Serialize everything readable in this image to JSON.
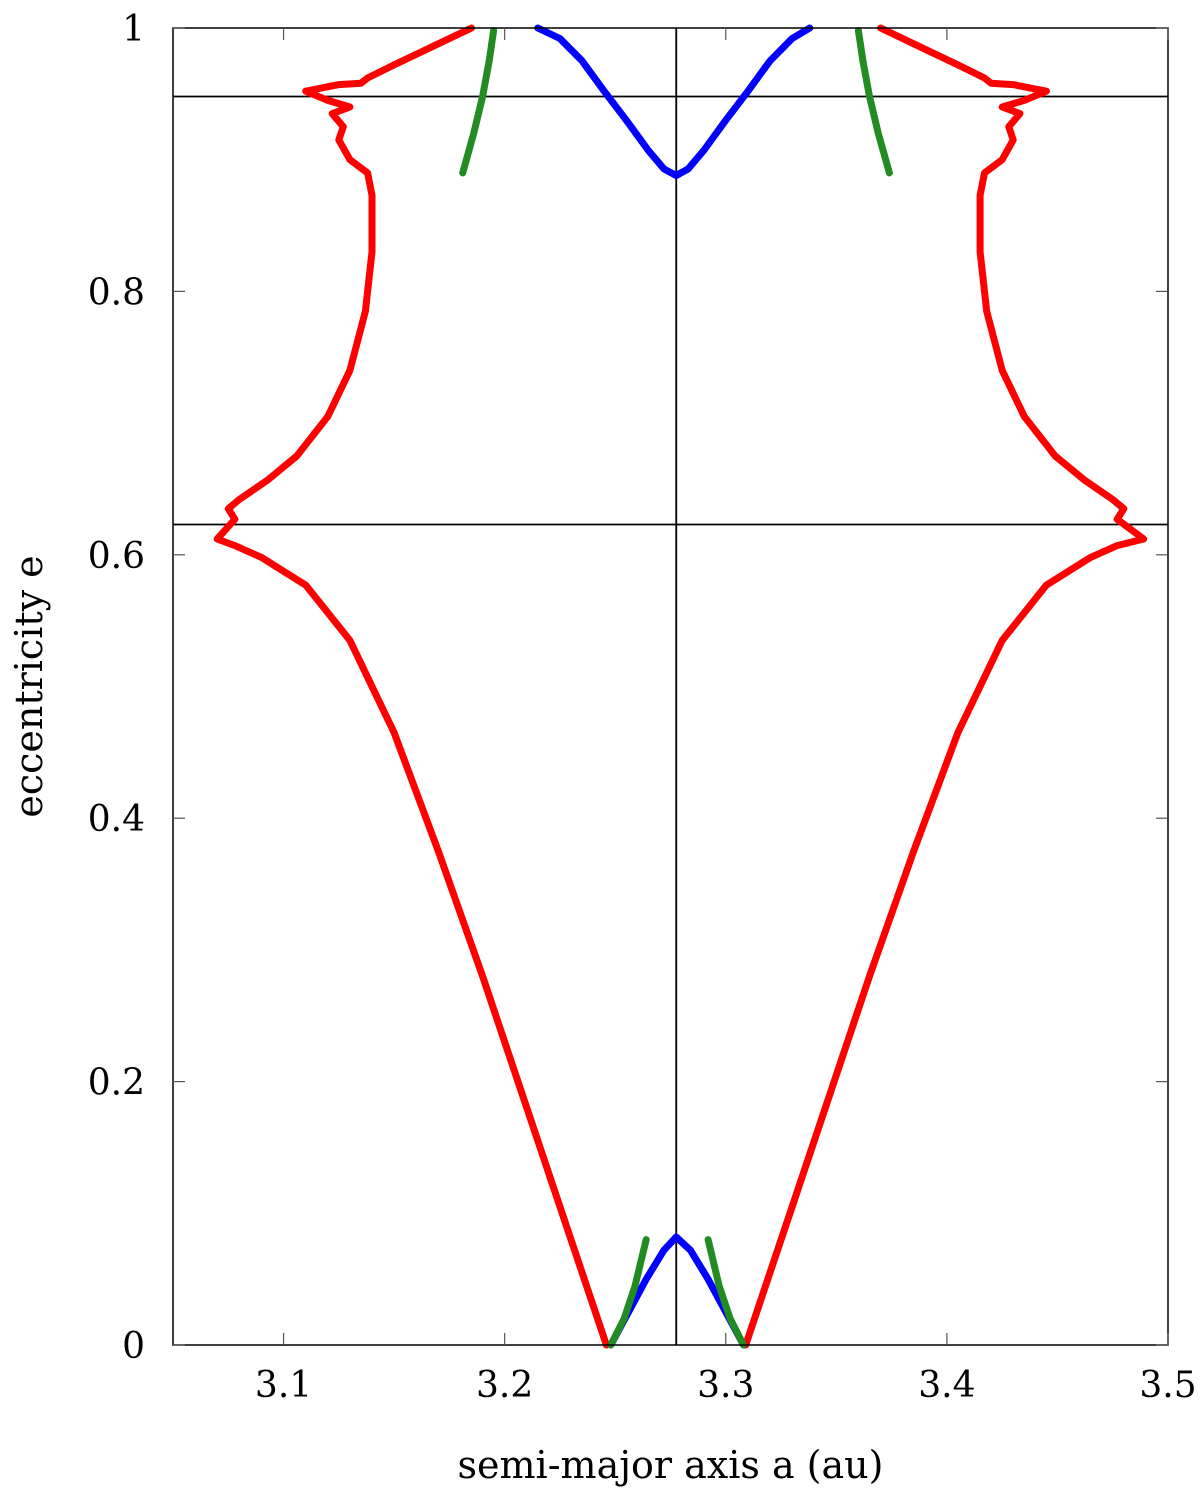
{
  "chart_data": {
    "type": "line",
    "xlabel": "semi-major axis a (au)",
    "ylabel": "eccentricity e",
    "xlim": [
      3.05,
      3.5
    ],
    "ylim": [
      0,
      1
    ],
    "xticks": [
      "3.1",
      "3.2",
      "3.3",
      "3.4",
      "3.5"
    ],
    "xtick_values": [
      3.1,
      3.2,
      3.3,
      3.4,
      3.5
    ],
    "yticks": [
      "0",
      "0.2",
      "0.4",
      "0.6",
      "0.8",
      "1"
    ],
    "ytick_values": [
      0,
      0.2,
      0.4,
      0.6,
      0.8,
      1
    ],
    "grid": false,
    "reference_lines": {
      "x": [
        3.2776
      ],
      "y": [
        0.948,
        0.623
      ]
    },
    "colors": {
      "red": "#ff0000",
      "blue": "#0000ff",
      "green": "#228b22",
      "axes": "#000000"
    },
    "series": [
      {
        "color": "#ff0000",
        "points": [
          [
            3.246,
            0.0
          ],
          [
            3.23,
            0.08
          ],
          [
            3.21,
            0.18
          ],
          [
            3.19,
            0.28
          ],
          [
            3.17,
            0.375
          ],
          [
            3.15,
            0.465
          ],
          [
            3.13,
            0.535
          ],
          [
            3.11,
            0.577
          ],
          [
            3.09,
            0.598
          ],
          [
            3.078,
            0.607
          ],
          [
            3.07,
            0.612
          ],
          [
            3.078,
            0.627
          ],
          [
            3.075,
            0.635
          ],
          [
            3.08,
            0.642
          ],
          [
            3.093,
            0.657
          ],
          [
            3.106,
            0.675
          ],
          [
            3.12,
            0.705
          ],
          [
            3.13,
            0.74
          ],
          [
            3.137,
            0.785
          ],
          [
            3.14,
            0.83
          ],
          [
            3.14,
            0.873
          ],
          [
            3.138,
            0.89
          ],
          [
            3.13,
            0.9
          ],
          [
            3.125,
            0.915
          ],
          [
            3.127,
            0.925
          ],
          [
            3.122,
            0.935
          ],
          [
            3.13,
            0.94
          ],
          [
            3.12,
            0.945
          ],
          [
            3.11,
            0.952
          ],
          [
            3.125,
            0.957
          ],
          [
            3.135,
            0.958
          ],
          [
            3.138,
            0.962
          ],
          [
            3.15,
            0.972
          ],
          [
            3.17,
            0.988
          ],
          [
            3.185,
            1.0
          ]
        ]
      },
      {
        "color": "#ff0000",
        "points": [
          [
            3.309,
            0.0
          ],
          [
            3.325,
            0.08
          ],
          [
            3.345,
            0.18
          ],
          [
            3.365,
            0.28
          ],
          [
            3.385,
            0.375
          ],
          [
            3.405,
            0.465
          ],
          [
            3.425,
            0.535
          ],
          [
            3.445,
            0.577
          ],
          [
            3.465,
            0.598
          ],
          [
            3.477,
            0.607
          ],
          [
            3.489,
            0.612
          ],
          [
            3.477,
            0.627
          ],
          [
            3.48,
            0.635
          ],
          [
            3.475,
            0.642
          ],
          [
            3.462,
            0.657
          ],
          [
            3.449,
            0.675
          ],
          [
            3.435,
            0.705
          ],
          [
            3.425,
            0.74
          ],
          [
            3.418,
            0.785
          ],
          [
            3.415,
            0.83
          ],
          [
            3.415,
            0.873
          ],
          [
            3.417,
            0.89
          ],
          [
            3.425,
            0.9
          ],
          [
            3.43,
            0.915
          ],
          [
            3.428,
            0.925
          ],
          [
            3.433,
            0.935
          ],
          [
            3.425,
            0.94
          ],
          [
            3.435,
            0.945
          ],
          [
            3.445,
            0.952
          ],
          [
            3.43,
            0.957
          ],
          [
            3.42,
            0.958
          ],
          [
            3.417,
            0.962
          ],
          [
            3.405,
            0.972
          ],
          [
            3.385,
            0.988
          ],
          [
            3.37,
            1.0
          ]
        ]
      },
      {
        "color": "#0000ff",
        "points": [
          [
            3.215,
            1.0
          ],
          [
            3.225,
            0.992
          ],
          [
            3.235,
            0.975
          ],
          [
            3.245,
            0.952
          ],
          [
            3.255,
            0.93
          ],
          [
            3.265,
            0.907
          ],
          [
            3.272,
            0.893
          ],
          [
            3.2776,
            0.888
          ],
          [
            3.283,
            0.893
          ],
          [
            3.29,
            0.907
          ],
          [
            3.3,
            0.93
          ],
          [
            3.31,
            0.952
          ],
          [
            3.32,
            0.975
          ],
          [
            3.33,
            0.992
          ],
          [
            3.338,
            1.0
          ]
        ]
      },
      {
        "color": "#0000ff",
        "points": [
          [
            3.248,
            0.0
          ],
          [
            3.256,
            0.025
          ],
          [
            3.264,
            0.05
          ],
          [
            3.272,
            0.072
          ],
          [
            3.2776,
            0.082
          ],
          [
            3.284,
            0.072
          ],
          [
            3.292,
            0.05
          ],
          [
            3.3,
            0.025
          ],
          [
            3.308,
            0.0
          ]
        ]
      },
      {
        "color": "#228b22",
        "points": [
          [
            3.195,
            0.998
          ],
          [
            3.193,
            0.975
          ],
          [
            3.19,
            0.948
          ],
          [
            3.186,
            0.92
          ],
          [
            3.181,
            0.89
          ]
        ]
      },
      {
        "color": "#228b22",
        "points": [
          [
            3.36,
            0.998
          ],
          [
            3.362,
            0.975
          ],
          [
            3.365,
            0.948
          ],
          [
            3.369,
            0.92
          ],
          [
            3.374,
            0.89
          ]
        ]
      },
      {
        "color": "#228b22",
        "points": [
          [
            3.248,
            0.0
          ],
          [
            3.254,
            0.02
          ],
          [
            3.259,
            0.045
          ],
          [
            3.264,
            0.08
          ]
        ]
      },
      {
        "color": "#228b22",
        "points": [
          [
            3.308,
            0.0
          ],
          [
            3.302,
            0.02
          ],
          [
            3.297,
            0.045
          ],
          [
            3.292,
            0.08
          ]
        ]
      }
    ]
  }
}
